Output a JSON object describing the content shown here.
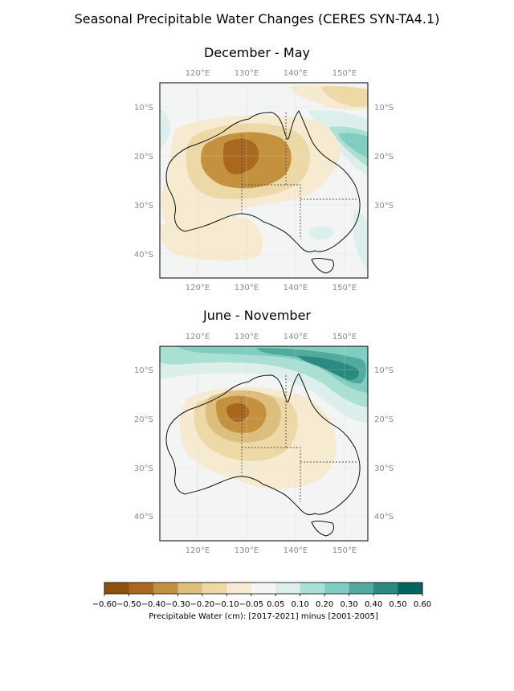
{
  "title": "Seasonal Precipitable Water Changes  (CERES SYN-TA4.1)",
  "panels": [
    {
      "title": "December - May"
    },
    {
      "title": "June - November"
    }
  ],
  "axes": {
    "lon_ticks": [
      "120°E",
      "130°E",
      "140°E",
      "150°E"
    ],
    "lat_ticks": [
      "10°S",
      "20°S",
      "30°S",
      "40°S"
    ]
  },
  "colorbar": {
    "label": "Precipitable Water (cm): [2017-2021] minus [2001-2005]",
    "tick_labels": [
      "−0.60",
      "−0.50",
      "−0.40",
      "−0.30",
      "−0.20",
      "−0.10",
      "−0.05",
      "0.05",
      "0.10",
      "0.20",
      "0.30",
      "0.40",
      "0.50",
      "0.60"
    ],
    "colors": [
      "#8c510a",
      "#a9681e",
      "#c4913e",
      "#dcbf7c",
      "#ecd9a5",
      "#f6ead0",
      "#f5f5f5",
      "#dcefec",
      "#aadfd4",
      "#80cdc1",
      "#52a99e",
      "#2b8a80",
      "#01665e"
    ]
  }
}
